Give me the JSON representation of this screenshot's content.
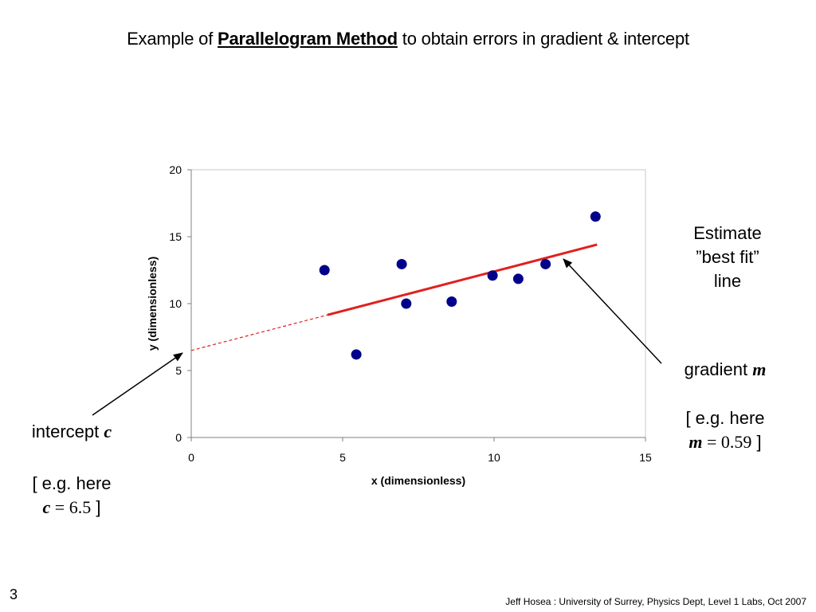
{
  "title": {
    "prefix": "Example of ",
    "bold": "Parallelogram Method",
    "suffix": " to obtain errors in gradient & intercept"
  },
  "annotations": {
    "best_fit_line1": "Estimate",
    "best_fit_line2": "”best fit”",
    "best_fit_line3": "line",
    "gradient_label": "gradient ",
    "gradient_symbol": "m",
    "gradient_example_prefix": "[ e.g. here",
    "gradient_example_symbol": "m",
    "gradient_example_value": " = 0.59",
    "gradient_example_close": " ]",
    "intercept_label": "intercept ",
    "intercept_symbol": "c",
    "intercept_example_prefix": "[ e.g. here",
    "intercept_example_symbol": "c",
    "intercept_example_value": " = 6.5",
    "intercept_example_close": " ]"
  },
  "footer": {
    "slide_number": "3",
    "credit": "Jeff Hosea : University of Surrey, Physics Dept, Level 1 Labs, Oct 2007"
  },
  "colors": {
    "points": "#00008B",
    "fit_line": "#E0201E",
    "axis": "#808080",
    "arrow": "#000000"
  },
  "chart_data": {
    "type": "scatter",
    "xlabel": "x (dimensionless)",
    "ylabel": "y (dimensionless)",
    "xlim": [
      0,
      15
    ],
    "ylim": [
      0,
      20
    ],
    "xticks": [
      0,
      5,
      10,
      15
    ],
    "yticks": [
      0,
      5,
      10,
      15,
      20
    ],
    "grid": false,
    "points": [
      {
        "x": 4.4,
        "y": 12.5
      },
      {
        "x": 5.45,
        "y": 6.2
      },
      {
        "x": 6.95,
        "y": 12.95
      },
      {
        "x": 7.1,
        "y": 10.0
      },
      {
        "x": 8.6,
        "y": 10.15
      },
      {
        "x": 9.95,
        "y": 12.1
      },
      {
        "x": 10.8,
        "y": 11.85
      },
      {
        "x": 11.7,
        "y": 12.95
      },
      {
        "x": 13.35,
        "y": 16.5
      }
    ],
    "fit_line": {
      "slope": 0.59,
      "intercept": 6.5,
      "x_start": 4.5,
      "x_end": 13.4
    },
    "extrapolation": {
      "x_start": 0,
      "x_end": 4.5
    }
  }
}
